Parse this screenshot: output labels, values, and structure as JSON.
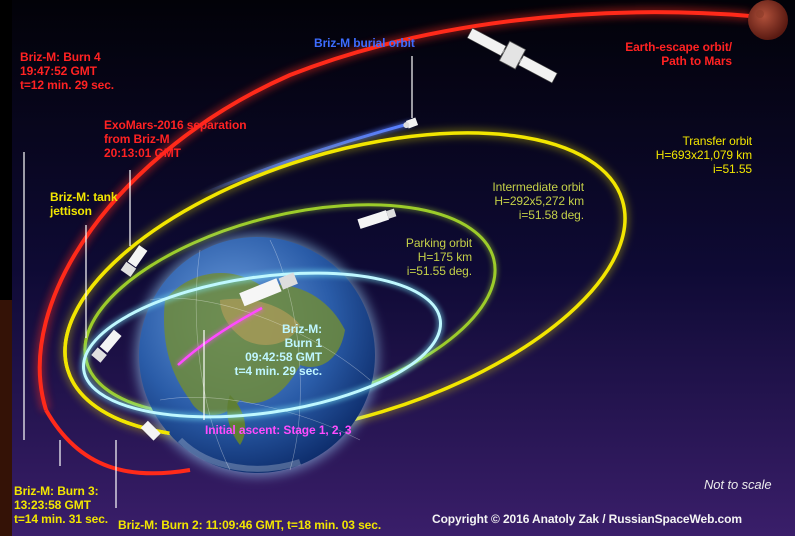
{
  "labels": {
    "burn4": [
      "Briz-M: Burn 4",
      "19:47:52 GMT",
      "t=12 min. 29 sec."
    ],
    "separation": [
      "ExoMars-2016 separation",
      "from Briz-M",
      "20:13:01 GMT"
    ],
    "tank": [
      "Briz-M: tank",
      "jettison"
    ],
    "burial": "Briz-M burial orbit",
    "escape": [
      "Earth-escape orbit/",
      "Path to Mars"
    ],
    "transfer": [
      "Transfer orbit",
      "H=693x21,079 km",
      "i=51.55"
    ],
    "intermediate": [
      "Intermediate orbit",
      "H=292x5,272 km",
      "i=51.58 deg."
    ],
    "parking": [
      "Parking orbit",
      "H=175 km",
      "i=51.55 deg."
    ],
    "burn1": [
      "Briz-M:",
      "Burn 1",
      "09:42:58 GMT",
      "t=4 min. 29 sec."
    ],
    "ascent": "Initial ascent: Stage 1, 2, 3",
    "burn3": [
      "Briz-M: Burn 3:",
      "13:23:58 GMT",
      "t=14 min. 31 sec."
    ],
    "burn2": "Briz-M: Burn 2: 11:09:46 GMT, t=18 min. 03 sec.",
    "scale_note": "Not to scale",
    "copyright": "Copyright © 2016 Anatoly Zak / RussianSpaceWeb.com"
  },
  "colors": {
    "escape_orbit": "#ff2a1a",
    "transfer_orbit": "#f2e600",
    "intermediate_orbit": "#9ccc2a",
    "parking_orbit": "#7ff2ff",
    "burial_orbit": "#3b62ff",
    "ascent": "#ff4bff"
  },
  "icons": [
    "earth-globe-icon",
    "mars-planet-icon",
    "satellite-icon",
    "spacecraft-icon"
  ]
}
